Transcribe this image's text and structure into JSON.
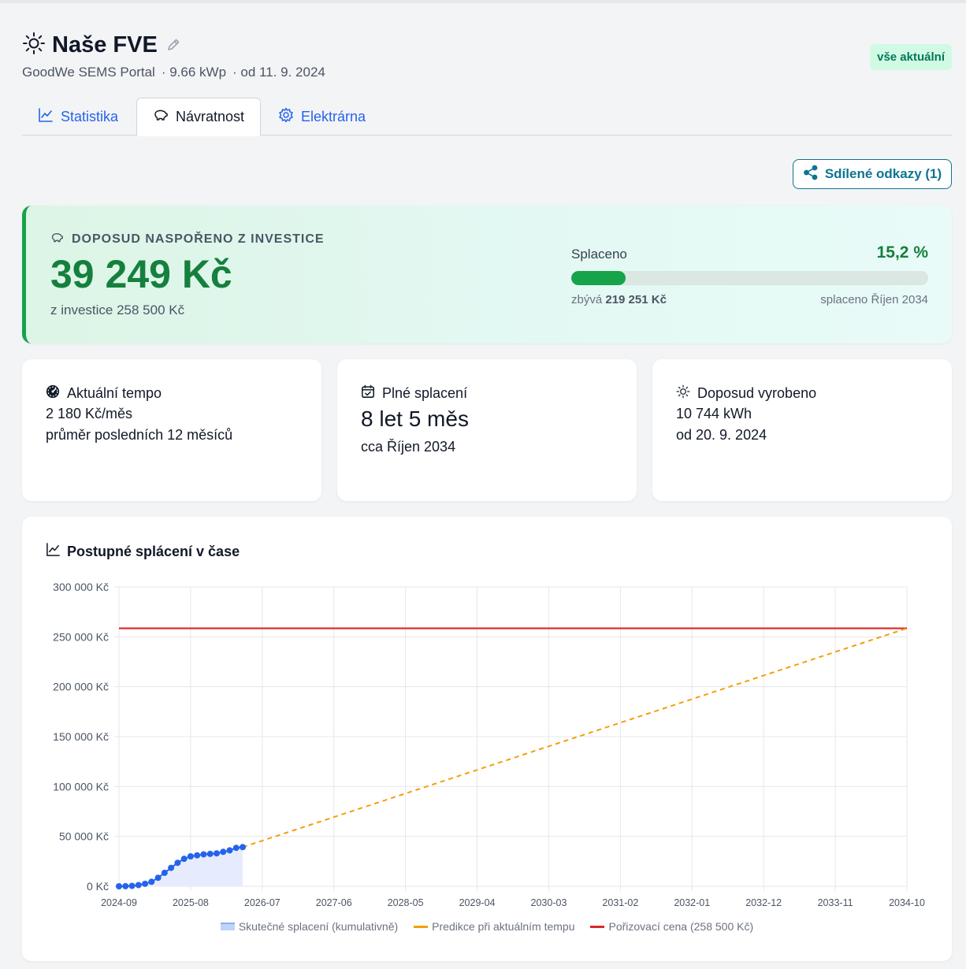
{
  "header": {
    "title": "Naše FVE",
    "source": "GoodWe SEMS Portal",
    "power": "· 9.66 kWp",
    "since": "· od 11. 9. 2024",
    "status_badge": "vše aktuální"
  },
  "tabs": [
    {
      "label": "Statistika",
      "icon": "chart-line-icon"
    },
    {
      "label": "Návratnost",
      "icon": "piggy-bank-icon",
      "active": true
    },
    {
      "label": "Elektrárna",
      "icon": "gear-icon"
    }
  ],
  "share_button": {
    "label": "Sdílené odkazy (1)",
    "icon": "share-icon"
  },
  "hero": {
    "label": "DOPOSUD NASPOŘENO Z INVESTICE",
    "amount": "39 249 Kč",
    "sub": "z investice 258 500 Kč",
    "progress_label": "Splaceno",
    "progress_pct_text": "15,2 %",
    "progress_fraction": 0.152,
    "remaining_prefix": "zbývá",
    "remaining_amount": "219 251 Kč",
    "paid_off": "splaceno Říjen 2034"
  },
  "cards": [
    {
      "title": "Aktuální tempo",
      "icon": "gauge-icon",
      "line1": "2 180 Kč/měs",
      "line2": "průměr posledních 12 měsíců"
    },
    {
      "title": "Plné splacení",
      "icon": "calendar-check-icon",
      "big": "8 let 5 měs",
      "line2": "cca Říjen 2034"
    },
    {
      "title": "Doposud vyrobeno",
      "icon": "sun-icon",
      "line1": "10 744 kWh",
      "line2": "od 20. 9. 2024"
    }
  ],
  "chart_title": "Postupné splácení v čase",
  "chart_data": {
    "type": "line",
    "title": "Postupné splácení v čase",
    "x_ticks": [
      "2024-09",
      "2025-08",
      "2026-07",
      "2027-06",
      "2028-05",
      "2029-04",
      "2030-03",
      "2031-02",
      "2032-01",
      "2032-12",
      "2033-11",
      "2034-10"
    ],
    "y_ticks": [
      "0 Kč",
      "50 000 Kč",
      "100 000 Kč",
      "150 000 Kč",
      "200 000 Kč",
      "250 000 Kč",
      "300 000 Kč"
    ],
    "ylim": [
      0,
      300000
    ],
    "grid": true,
    "legend_position": "bottom",
    "series": [
      {
        "name": "Skutečné splacení (kumulativně)",
        "type": "area",
        "color": "#2563eb",
        "x": [
          "2024-09",
          "2024-10",
          "2024-11",
          "2024-12",
          "2025-01",
          "2025-02",
          "2025-03",
          "2025-04",
          "2025-05",
          "2025-06",
          "2025-07",
          "2025-08",
          "2025-09",
          "2025-10",
          "2025-11",
          "2025-12",
          "2026-01",
          "2026-02",
          "2026-03",
          "2026-04"
        ],
        "values": [
          0,
          100,
          400,
          1200,
          2500,
          4500,
          8500,
          13500,
          18500,
          23500,
          27500,
          30000,
          31000,
          32000,
          32500,
          33000,
          34500,
          36000,
          38500,
          39249
        ]
      },
      {
        "name": "Predikce při aktuálním tempu",
        "type": "dashed-line",
        "color": "#f59e0b",
        "x": [
          "2026-04",
          "2034-10"
        ],
        "values": [
          39249,
          258500
        ]
      },
      {
        "name": "Pořizovací cena (258 500 Kč)",
        "type": "line",
        "color": "#dc2626",
        "x": [
          "2024-09",
          "2034-10"
        ],
        "values": [
          258500,
          258500
        ]
      }
    ]
  }
}
